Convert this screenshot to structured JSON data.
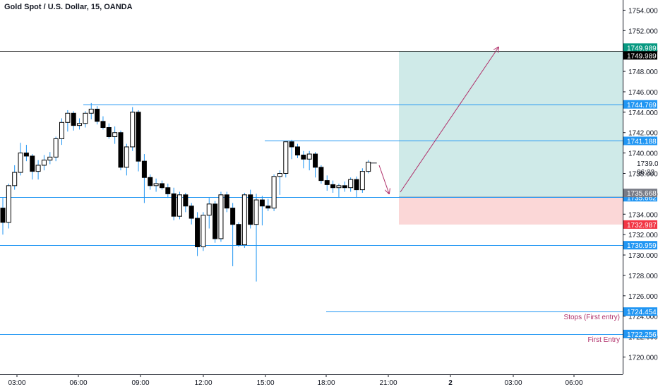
{
  "header": {
    "title": "Gold Spot / U.S. Dollar, 15, OANDA",
    "title_color": "#2962ff"
  },
  "countdown": "06:22",
  "colors": {
    "up_body": "#ffffff",
    "down_body": "#000000",
    "wick": "#2196f3",
    "hline": "#2196f3",
    "profit_zone": "#cfeae8",
    "loss_zone": "#fbd7d7",
    "arrow": "#b0306a",
    "annotation_text": "#b0306a",
    "target_badge": "#089981",
    "stop_badge": "#f23645",
    "last_badge": "#000000",
    "level_badge": "#2196f3",
    "grey_badge": "#787b86"
  },
  "chart_data": {
    "type": "candlestick",
    "symbol": "Gold Spot / U.S. Dollar",
    "interval": "15",
    "source": "OANDA",
    "x_ticks": [
      "03:00",
      "06:00",
      "09:00",
      "12:00",
      "15:00",
      "18:00",
      "21:00",
      "2",
      "03:00",
      "06:00"
    ],
    "y_ticks": [
      "1720.000",
      "1722.000",
      "1724.000",
      "1726.000",
      "1728.000",
      "1730.000",
      "1732.000",
      "1734.000",
      "1736.000",
      "1738.000",
      "1740.000",
      "1742.000",
      "1744.000",
      "1746.000",
      "1748.000",
      "1750.000",
      "1752.000",
      "1754.000"
    ],
    "ylim": [
      1718.3,
      1755.0
    ],
    "candles": [
      [
        1734.6,
        1735.6,
        1732.0,
        1733.2
      ],
      [
        1733.2,
        1737.0,
        1732.6,
        1736.8
      ],
      [
        1736.8,
        1738.8,
        1736.4,
        1738.1
      ],
      [
        1738.1,
        1741.0,
        1737.8,
        1740.0
      ],
      [
        1740.0,
        1740.8,
        1739.2,
        1739.7
      ],
      [
        1739.7,
        1739.9,
        1737.4,
        1738.2
      ],
      [
        1738.2,
        1739.3,
        1737.4,
        1738.8
      ],
      [
        1738.8,
        1739.8,
        1738.3,
        1739.3
      ],
      [
        1739.3,
        1740.1,
        1738.9,
        1739.6
      ],
      [
        1739.6,
        1741.6,
        1739.2,
        1741.4
      ],
      [
        1741.4,
        1743.4,
        1740.8,
        1743.0
      ],
      [
        1743.0,
        1744.2,
        1742.1,
        1743.9
      ],
      [
        1743.9,
        1744.1,
        1742.2,
        1742.7
      ],
      [
        1742.7,
        1743.4,
        1742.3,
        1742.9
      ],
      [
        1742.9,
        1744.1,
        1742.5,
        1743.9
      ],
      [
        1743.9,
        1744.9,
        1743.3,
        1744.3
      ],
      [
        1744.3,
        1744.6,
        1742.8,
        1743.1
      ],
      [
        1743.1,
        1743.6,
        1742.3,
        1742.5
      ],
      [
        1742.5,
        1742.9,
        1741.4,
        1741.6
      ],
      [
        1741.6,
        1742.6,
        1740.9,
        1742.0
      ],
      [
        1742.0,
        1742.2,
        1738.3,
        1738.6
      ],
      [
        1738.6,
        1740.9,
        1737.8,
        1740.6
      ],
      [
        1740.6,
        1744.5,
        1740.2,
        1744.0
      ],
      [
        1744.0,
        1744.2,
        1738.2,
        1739.2
      ],
      [
        1739.2,
        1739.9,
        1735.1,
        1737.6
      ],
      [
        1737.6,
        1737.9,
        1736.4,
        1736.8
      ],
      [
        1736.8,
        1737.5,
        1736.2,
        1737.0
      ],
      [
        1737.0,
        1737.3,
        1736.4,
        1736.6
      ],
      [
        1736.6,
        1737.0,
        1735.6,
        1736.0
      ],
      [
        1736.0,
        1736.6,
        1733.4,
        1733.8
      ],
      [
        1733.8,
        1736.2,
        1733.5,
        1735.9
      ],
      [
        1735.9,
        1736.1,
        1734.2,
        1734.8
      ],
      [
        1734.8,
        1735.1,
        1733.0,
        1733.6
      ],
      [
        1733.6,
        1734.2,
        1729.9,
        1730.8
      ],
      [
        1730.8,
        1734.2,
        1730.4,
        1733.9
      ],
      [
        1733.9,
        1735.6,
        1732.6,
        1735.0
      ],
      [
        1735.0,
        1735.3,
        1731.2,
        1731.6
      ],
      [
        1731.6,
        1736.2,
        1731.3,
        1735.9
      ],
      [
        1735.9,
        1736.2,
        1734.2,
        1734.6
      ],
      [
        1734.6,
        1735.1,
        1728.9,
        1733.0
      ],
      [
        1733.0,
        1733.2,
        1730.8,
        1731.0
      ],
      [
        1731.0,
        1736.1,
        1730.7,
        1735.9
      ],
      [
        1735.9,
        1736.4,
        1732.6,
        1733.0
      ],
      [
        1733.0,
        1736.0,
        1727.4,
        1735.4
      ],
      [
        1735.4,
        1735.8,
        1732.9,
        1734.8
      ],
      [
        1734.8,
        1735.5,
        1734.3,
        1734.6
      ],
      [
        1734.6,
        1737.9,
        1734.3,
        1737.7
      ],
      [
        1737.7,
        1738.3,
        1735.9,
        1738.0
      ],
      [
        1738.0,
        1741.1,
        1737.6,
        1741.1
      ],
      [
        1741.1,
        1741.3,
        1739.4,
        1740.6
      ],
      [
        1740.6,
        1740.9,
        1739.5,
        1739.8
      ],
      [
        1739.8,
        1740.2,
        1738.5,
        1739.4
      ],
      [
        1739.4,
        1740.2,
        1738.3,
        1739.9
      ],
      [
        1739.9,
        1740.1,
        1737.6,
        1738.6
      ],
      [
        1738.6,
        1738.8,
        1737.0,
        1737.3
      ],
      [
        1737.3,
        1737.8,
        1736.3,
        1736.9
      ],
      [
        1736.9,
        1737.3,
        1736.1,
        1736.6
      ],
      [
        1736.6,
        1737.0,
        1735.6,
        1736.8
      ],
      [
        1736.8,
        1737.2,
        1736.2,
        1736.6
      ],
      [
        1736.6,
        1737.6,
        1736.2,
        1737.4
      ],
      [
        1737.4,
        1737.7,
        1735.6,
        1736.4
      ],
      [
        1736.4,
        1738.5,
        1736.1,
        1738.2
      ],
      [
        1738.2,
        1739.3,
        1738.0,
        1739.1
      ]
    ],
    "horizontal_levels": [
      {
        "price": 1749.989,
        "label": "1749.989",
        "color": "#000000",
        "badge": "#089981"
      },
      {
        "price": 1744.769,
        "label": "1744.769",
        "color": "#2196f3",
        "badge": "#2196f3"
      },
      {
        "price": 1741.188,
        "label": "1741.188",
        "color": "#2196f3",
        "badge": "#2196f3"
      },
      {
        "price": 1735.662,
        "label": "1735.662",
        "color": "#2196f3",
        "badge": "#2196f3"
      },
      {
        "price": 1730.959,
        "label": "1730.959",
        "color": "#2196f3",
        "badge": "#2196f3"
      },
      {
        "price": 1724.454,
        "label": "1724.454",
        "color": "#2196f3",
        "badge": "#2196f3"
      },
      {
        "price": 1722.256,
        "label": "1722.256",
        "color": "#2196f3",
        "badge": "#2196f3"
      }
    ],
    "extra_badges": [
      {
        "price": 1749.989,
        "label": "1749.989",
        "badge": "#000000",
        "offset": 1
      },
      {
        "price": 1735.668,
        "label": "1735.668",
        "badge": "#787b86",
        "offset": -1
      },
      {
        "price": 1732.987,
        "label": "1732.987",
        "badge": "#f23645",
        "offset": 0
      }
    ],
    "last_price": {
      "price": 1739.017,
      "label": "1739.017"
    },
    "position": {
      "entry": 1735.668,
      "target": 1749.989,
      "stop": 1732.987
    },
    "annotations": [
      {
        "text": "Stops (First entry)",
        "price": 1724.454
      },
      {
        "text": "First Entry",
        "price": 1722.256
      }
    ]
  }
}
